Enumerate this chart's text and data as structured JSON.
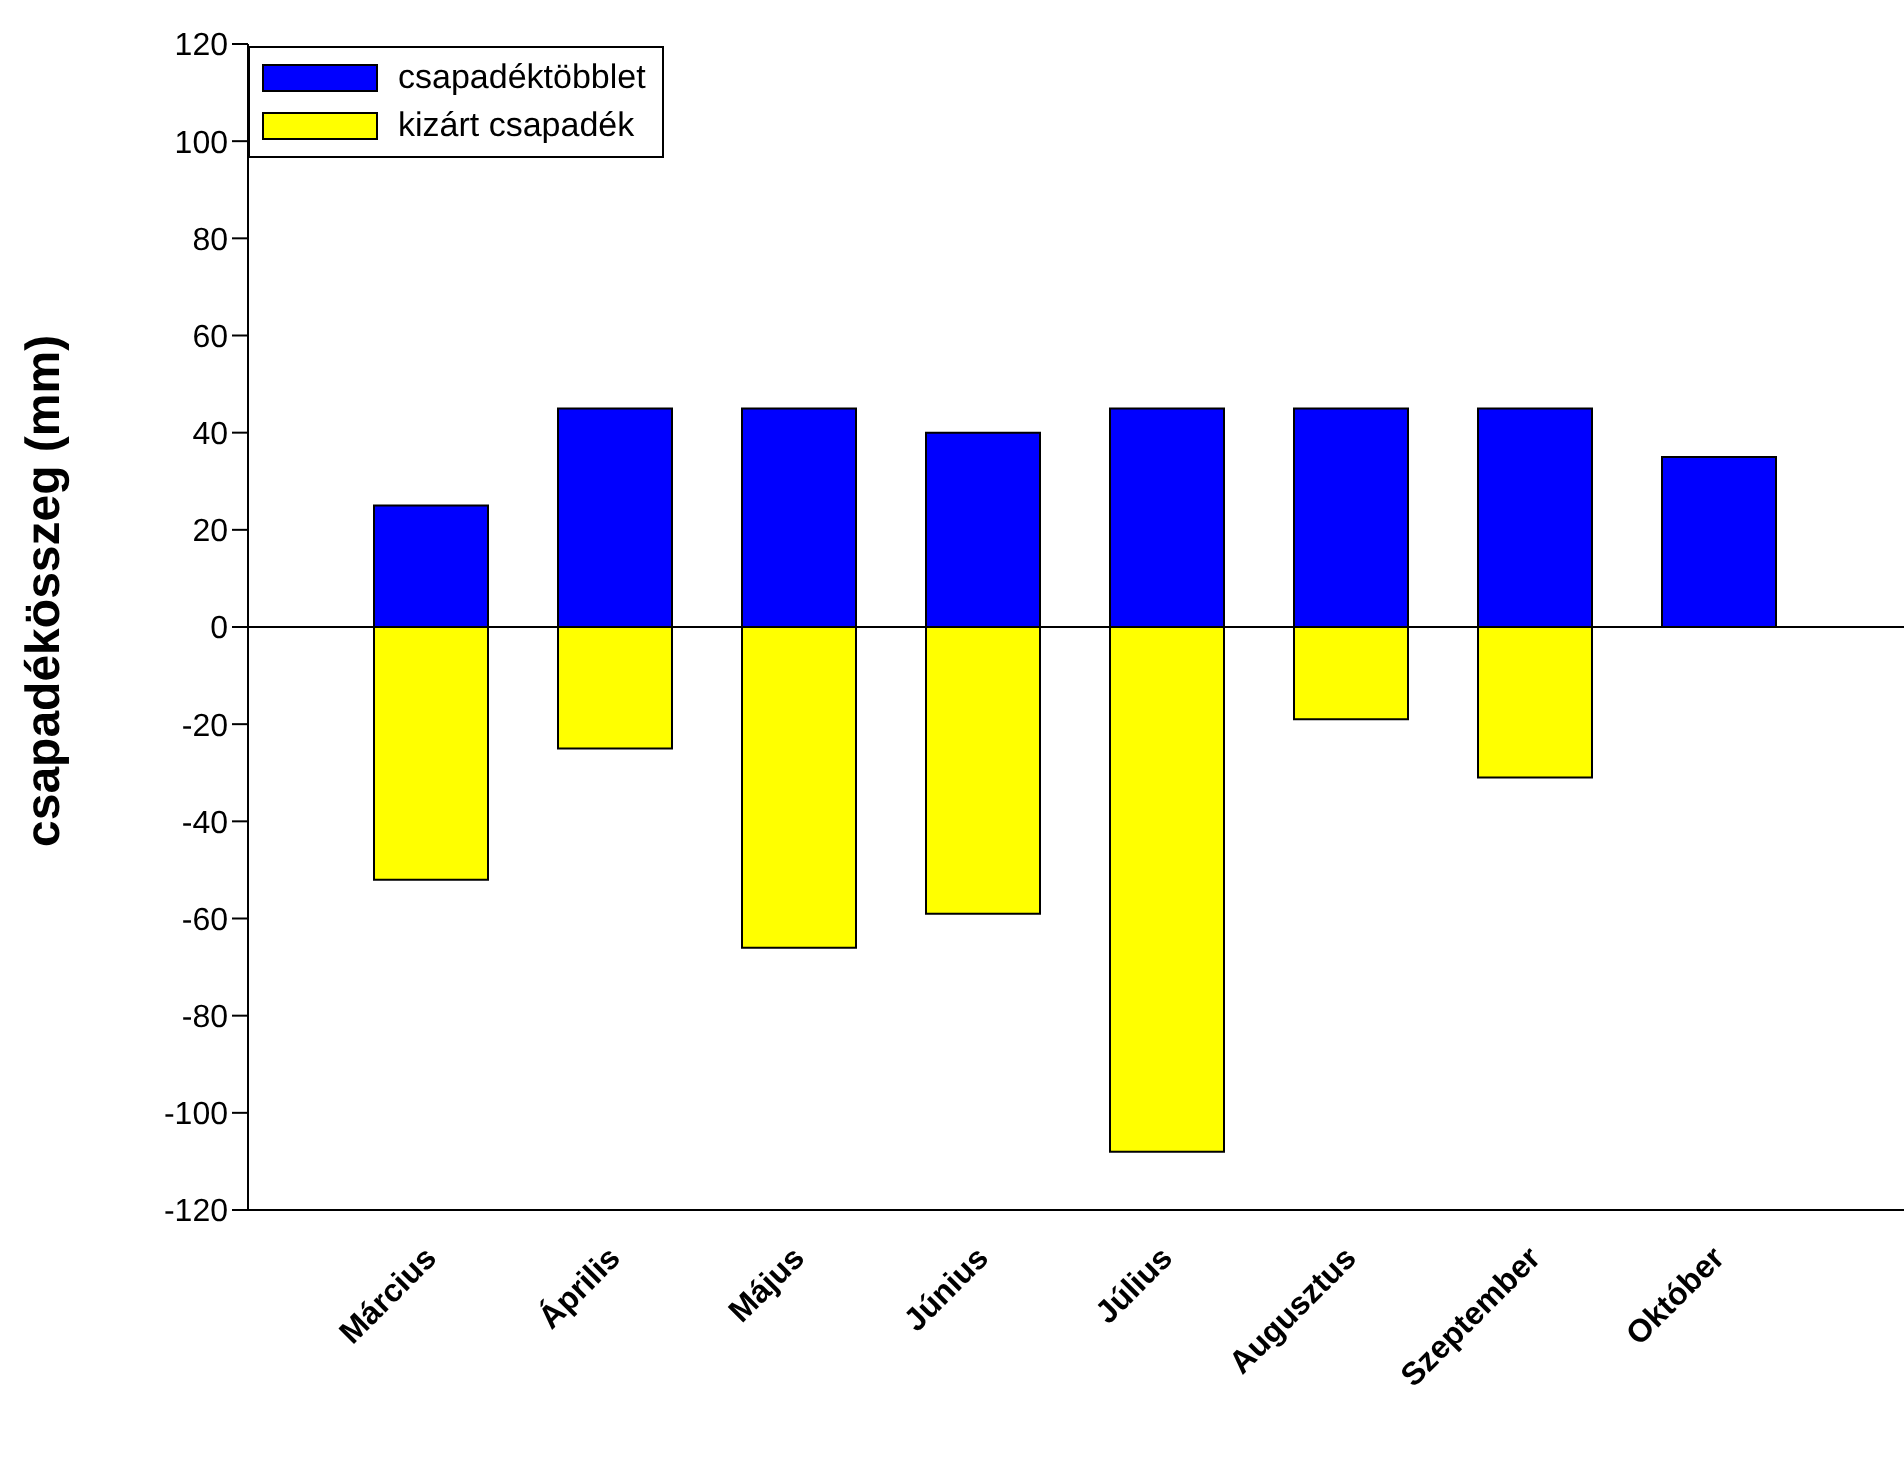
{
  "chart_data": {
    "type": "bar",
    "ylabel": "csapadékösszeg (mm)",
    "categories": [
      "Március",
      "Április",
      "Május",
      "Június",
      "Július",
      "Augusztus",
      "Szeptember",
      "Október"
    ],
    "series": [
      {
        "name": "csapadéktöbblet",
        "color": "#0000ff",
        "values": [
          25,
          45,
          45,
          40,
          45,
          45,
          45,
          35
        ]
      },
      {
        "name": "kizárt csapadék",
        "color": "#ffff00",
        "values": [
          -52,
          -25,
          -66,
          -59,
          -108,
          -19,
          -31,
          null
        ]
      }
    ],
    "stacked": true,
    "ylim": [
      -120,
      120
    ],
    "yticks": [
      -120,
      -100,
      -80,
      -60,
      -40,
      -20,
      0,
      20,
      40,
      60,
      80,
      100,
      120
    ],
    "ref_lines": [
      {
        "axis": "y",
        "value": 0,
        "color": "#000000"
      }
    ],
    "legend": "top left",
    "grid": false
  }
}
